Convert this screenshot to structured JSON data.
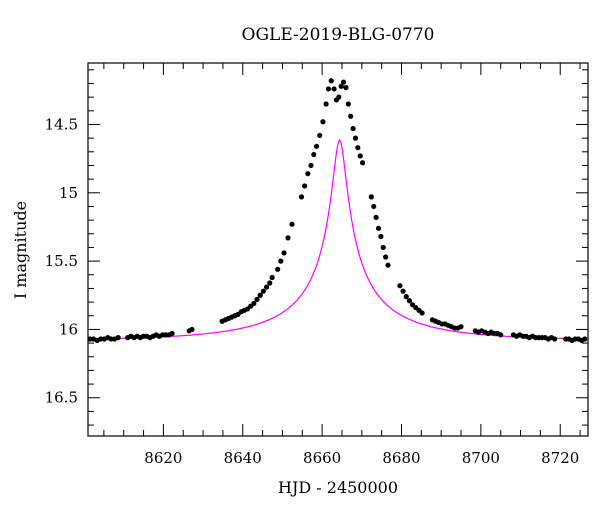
{
  "chart_data": {
    "type": "scatter",
    "title": "OGLE-2019-BLG-0770",
    "xlabel": "HJD - 2450000",
    "ylabel": "I magnitude",
    "xlim": [
      8601,
      8727
    ],
    "ylim": [
      16.78,
      14.05
    ],
    "y_inverted": true,
    "grid": false,
    "xticks": [
      8620,
      8640,
      8660,
      8680,
      8700,
      8720
    ],
    "yticks": [
      14.5,
      15,
      15.5,
      16,
      16.5
    ],
    "xtick_labels": [
      "8620",
      "8640",
      "8660",
      "8680",
      "8700",
      "8720"
    ],
    "ytick_labels": [
      "14.5",
      "15",
      "15.5",
      "16",
      "16.5"
    ],
    "model": {
      "color": "#ff00ff",
      "baseline_mag": 16.08,
      "t0": 8664.4,
      "u0": 0.05,
      "tE": 32.0,
      "blend_fraction": 0.15
    },
    "series": [
      {
        "color": "#000000",
        "points": [
          [
            8601.5,
            16.07
          ],
          [
            8602.4,
            16.07
          ],
          [
            8603.3,
            16.08
          ],
          [
            8604.2,
            16.07
          ],
          [
            8605.1,
            16.07
          ],
          [
            8606.0,
            16.06
          ],
          [
            8606.8,
            16.07
          ],
          [
            8607.7,
            16.07
          ],
          [
            8608.6,
            16.06
          ],
          [
            8611.0,
            16.06
          ],
          [
            8611.8,
            16.05
          ],
          [
            8612.6,
            16.06
          ],
          [
            8613.4,
            16.05
          ],
          [
            8614.2,
            16.06
          ],
          [
            8615.0,
            16.05
          ],
          [
            8615.8,
            16.05
          ],
          [
            8616.6,
            16.06
          ],
          [
            8617.4,
            16.05
          ],
          [
            8618.2,
            16.04
          ],
          [
            8619.0,
            16.05
          ],
          [
            8619.8,
            16.04
          ],
          [
            8620.6,
            16.04
          ],
          [
            8621.4,
            16.04
          ],
          [
            8622.2,
            16.03
          ],
          [
            8626.5,
            16.01
          ],
          [
            8627.2,
            16.0
          ],
          [
            8634.8,
            15.94
          ],
          [
            8635.6,
            15.93
          ],
          [
            8636.4,
            15.92
          ],
          [
            8637.2,
            15.91
          ],
          [
            8638.0,
            15.9
          ],
          [
            8638.8,
            15.89
          ],
          [
            8639.6,
            15.87
          ],
          [
            8640.4,
            15.86
          ],
          [
            8641.2,
            15.85
          ],
          [
            8642.0,
            15.83
          ],
          [
            8642.8,
            15.81
          ],
          [
            8643.6,
            15.78
          ],
          [
            8644.4,
            15.75
          ],
          [
            8645.2,
            15.72
          ],
          [
            8646.0,
            15.69
          ],
          [
            8646.8,
            15.66
          ],
          [
            8647.4,
            15.62
          ],
          [
            8648.8,
            15.56
          ],
          [
            8649.6,
            15.5
          ],
          [
            8650.4,
            15.44
          ],
          [
            8651.4,
            15.33
          ],
          [
            8652.4,
            15.23
          ],
          [
            8654.8,
            15.03
          ],
          [
            8655.6,
            14.95
          ],
          [
            8656.4,
            14.86
          ],
          [
            8657.2,
            14.8
          ],
          [
            8657.9,
            14.72
          ],
          [
            8658.6,
            14.66
          ],
          [
            8659.4,
            14.58
          ],
          [
            8660.2,
            14.48
          ],
          [
            8661.0,
            14.35
          ],
          [
            8661.6,
            14.24
          ],
          [
            8662.3,
            14.18
          ],
          [
            8663.0,
            14.24
          ],
          [
            8663.6,
            14.32
          ],
          [
            8664.2,
            14.3
          ],
          [
            8664.8,
            14.22
          ],
          [
            8665.4,
            14.19
          ],
          [
            8666.0,
            14.23
          ],
          [
            8666.6,
            14.35
          ],
          [
            8667.2,
            14.44
          ],
          [
            8667.8,
            14.53
          ],
          [
            8668.4,
            14.6
          ],
          [
            8669.0,
            14.67
          ],
          [
            8669.6,
            14.73
          ],
          [
            8670.2,
            14.78
          ],
          [
            8672.4,
            15.03
          ],
          [
            8673.0,
            15.1
          ],
          [
            8673.6,
            15.18
          ],
          [
            8674.2,
            15.26
          ],
          [
            8674.8,
            15.32
          ],
          [
            8675.4,
            15.4
          ],
          [
            8676.0,
            15.47
          ],
          [
            8676.6,
            15.53
          ],
          [
            8679.6,
            15.68
          ],
          [
            8680.4,
            15.72
          ],
          [
            8681.2,
            15.76
          ],
          [
            8682.0,
            15.79
          ],
          [
            8682.8,
            15.82
          ],
          [
            8683.6,
            15.84
          ],
          [
            8684.4,
            15.86
          ],
          [
            8685.2,
            15.88
          ],
          [
            8687.8,
            15.93
          ],
          [
            8688.6,
            15.94
          ],
          [
            8689.4,
            15.95
          ],
          [
            8690.2,
            15.96
          ],
          [
            8691.0,
            15.96
          ],
          [
            8691.8,
            15.97
          ],
          [
            8692.6,
            15.98
          ],
          [
            8693.4,
            15.99
          ],
          [
            8694.2,
            15.99
          ],
          [
            8695.0,
            15.98
          ],
          [
            8698.6,
            16.01
          ],
          [
            8699.4,
            16.02
          ],
          [
            8700.2,
            16.01
          ],
          [
            8701.0,
            16.02
          ],
          [
            8701.8,
            16.03
          ],
          [
            8702.6,
            16.02
          ],
          [
            8703.4,
            16.03
          ],
          [
            8704.2,
            16.03
          ],
          [
            8705.0,
            16.04
          ],
          [
            8708.2,
            16.04
          ],
          [
            8709.0,
            16.05
          ],
          [
            8709.8,
            16.04
          ],
          [
            8710.6,
            16.05
          ],
          [
            8711.4,
            16.05
          ],
          [
            8712.2,
            16.06
          ],
          [
            8713.0,
            16.05
          ],
          [
            8713.8,
            16.06
          ],
          [
            8714.6,
            16.06
          ],
          [
            8715.4,
            16.06
          ],
          [
            8716.2,
            16.06
          ],
          [
            8717.0,
            16.07
          ],
          [
            8717.8,
            16.06
          ],
          [
            8718.6,
            16.07
          ],
          [
            8721.4,
            16.07
          ],
          [
            8722.2,
            16.07
          ],
          [
            8723.0,
            16.08
          ],
          [
            8723.8,
            16.07
          ],
          [
            8724.6,
            16.07
          ],
          [
            8725.4,
            16.08
          ],
          [
            8726.2,
            16.07
          ]
        ]
      }
    ]
  }
}
